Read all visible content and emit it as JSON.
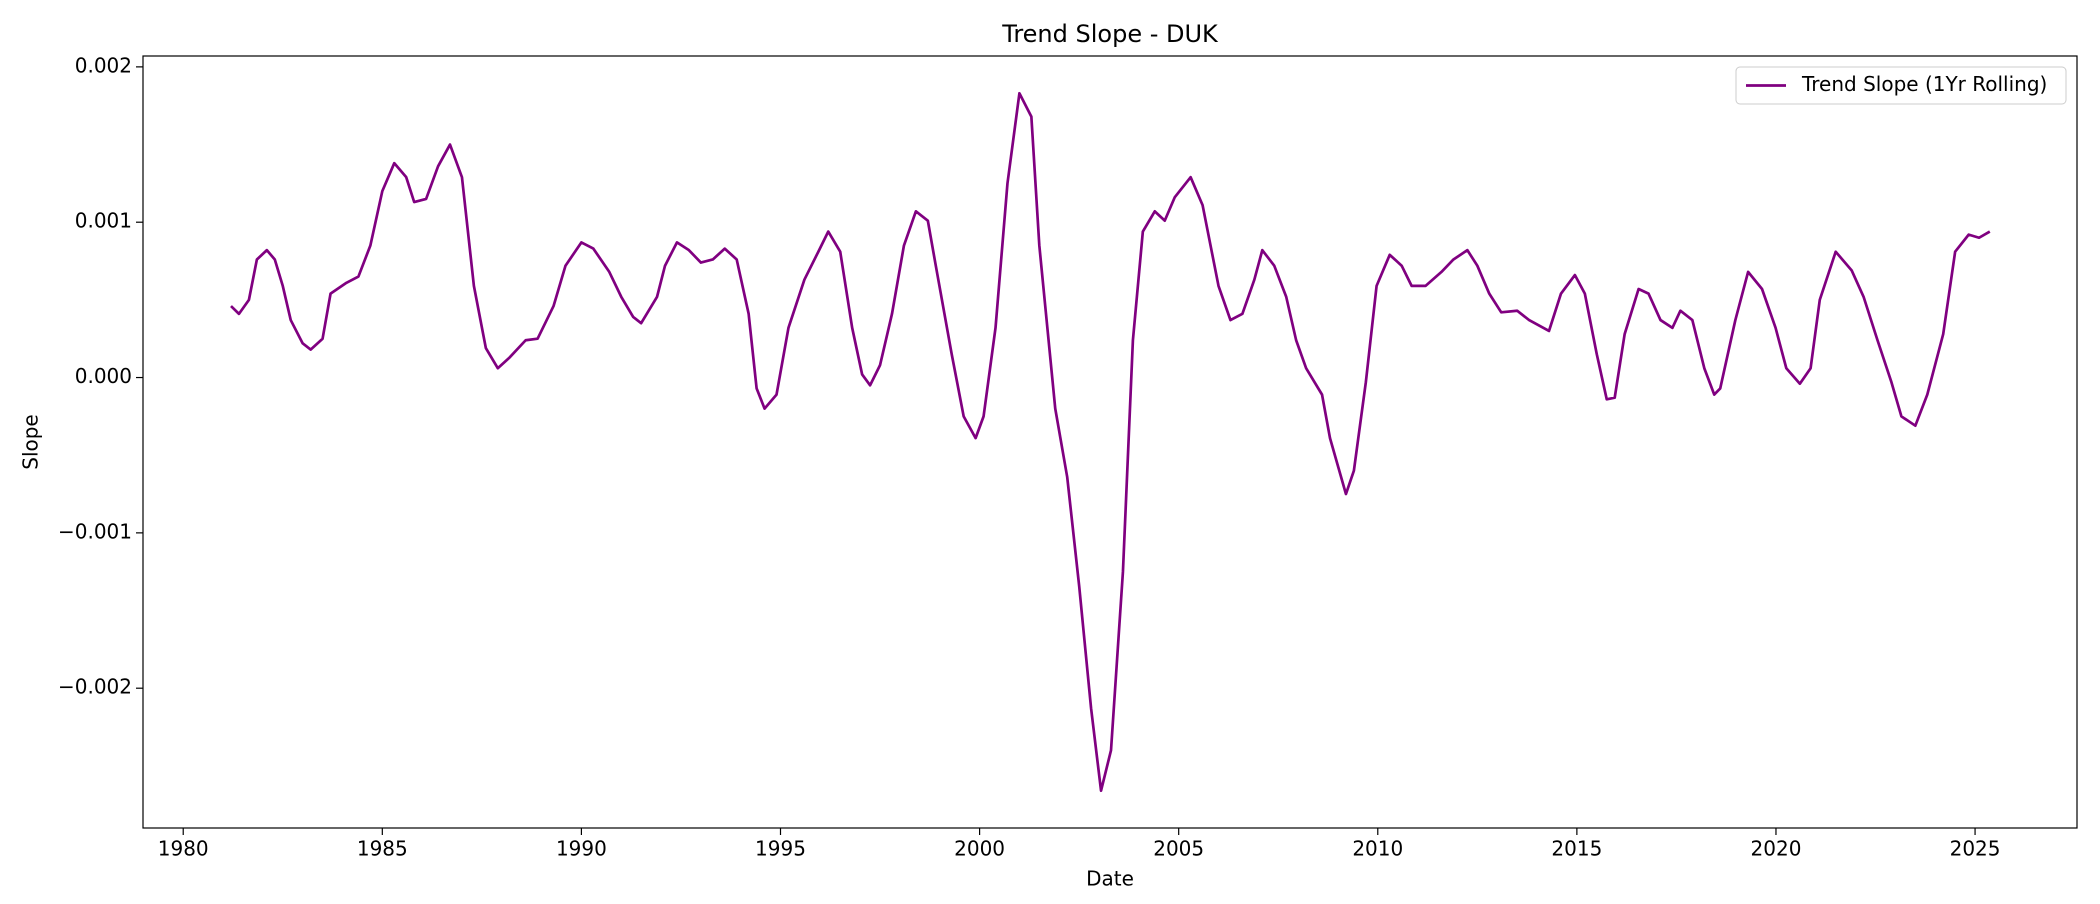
{
  "chart_data": {
    "type": "line",
    "title": "Trend Slope - DUK",
    "xlabel": "Date",
    "ylabel": "Slope",
    "legend": "upper right",
    "grid": false,
    "xlim": [
      1978.99,
      2027.56
    ],
    "xticks": [
      1980,
      1985,
      1990,
      1995,
      2000,
      2005,
      2010,
      2015,
      2020,
      2025
    ],
    "ylim": [
      -0.0029,
      0.00207
    ],
    "yticks": [
      {
        "value": -0.002,
        "label": "−0.002"
      },
      {
        "value": -0.001,
        "label": "−0.001"
      },
      {
        "value": 0,
        "label": "0.000"
      },
      {
        "value": 0.001,
        "label": "0.001"
      },
      0.002
    ],
    "x": [
      1981.2,
      1981.4,
      1981.65,
      1981.85,
      1982.1,
      1982.3,
      1982.5,
      1982.7,
      1983.0,
      1983.2,
      1983.5,
      1983.7,
      1984.1,
      1984.4,
      1984.7,
      1985.0,
      1985.3,
      1985.6,
      1985.8,
      1986.1,
      1986.4,
      1986.7,
      1987.0,
      1987.3,
      1987.6,
      1987.9,
      1988.2,
      1988.6,
      1988.9,
      1989.3,
      1989.6,
      1990.0,
      1990.3,
      1990.7,
      1991.0,
      1991.3,
      1991.5,
      1991.9,
      1992.1,
      1992.4,
      1992.7,
      1993.0,
      1993.3,
      1993.6,
      1993.9,
      1994.2,
      1994.4,
      1994.6,
      1994.9,
      1995.2,
      1995.6,
      1995.95,
      1996.2,
      1996.5,
      1996.8,
      1997.05,
      1997.25,
      1997.5,
      1997.8,
      1998.1,
      1998.4,
      1998.7,
      1998.9,
      1999.3,
      1999.6,
      1999.9,
      2000.1,
      2000.4,
      2000.7,
      2001.0,
      2001.3,
      2001.5,
      2001.9,
      2002.2,
      2002.5,
      2002.8,
      2003.05,
      2003.3,
      2003.6,
      2003.85,
      2004.1,
      2004.4,
      2004.65,
      2004.9,
      2005.3,
      2005.6,
      2006.0,
      2006.3,
      2006.6,
      2006.9,
      2007.1,
      2007.4,
      2007.7,
      2007.95,
      2008.2,
      2008.6,
      2008.8,
      2009.2,
      2009.4,
      2009.7,
      2009.97,
      2010.3,
      2010.6,
      2010.85,
      2011.2,
      2011.6,
      2011.9,
      2012.25,
      2012.5,
      2012.8,
      2013.1,
      2013.5,
      2013.8,
      2014.3,
      2014.6,
      2014.95,
      2015.2,
      2015.5,
      2015.75,
      2015.95,
      2016.2,
      2016.55,
      2016.8,
      2017.1,
      2017.4,
      2017.6,
      2017.9,
      2018.2,
      2018.45,
      2018.6,
      2018.98,
      2019.3,
      2019.65,
      2019.99,
      2020.26,
      2020.6,
      2020.87,
      2021.1,
      2021.5,
      2021.9,
      2022.2,
      2022.55,
      2022.9,
      2023.15,
      2023.5,
      2023.8,
      2024.2,
      2024.5,
      2024.84,
      2025.1,
      2025.37
    ],
    "series": [
      {
        "name": "Trend Slope (1Yr Rolling)",
        "color": "#800080",
        "values": [
          0.00046,
          0.00041,
          0.0005,
          0.00076,
          0.00082,
          0.00076,
          0.00059,
          0.00037,
          0.00022,
          0.00018,
          0.00025,
          0.00054,
          0.00061,
          0.00065,
          0.00085,
          0.0012,
          0.00138,
          0.00129,
          0.00113,
          0.00115,
          0.00136,
          0.0015,
          0.00129,
          0.00059,
          0.00019,
          6e-05,
          0.00013,
          0.00024,
          0.00025,
          0.00046,
          0.00072,
          0.00087,
          0.00083,
          0.00068,
          0.00052,
          0.00039,
          0.00035,
          0.00052,
          0.00072,
          0.00087,
          0.00082,
          0.00074,
          0.00076,
          0.00083,
          0.00076,
          0.00041,
          -7e-05,
          -0.0002,
          -0.00011,
          0.00032,
          0.00063,
          0.00081,
          0.00094,
          0.00081,
          0.00032,
          2e-05,
          -5e-05,
          8e-05,
          0.00041,
          0.00085,
          0.00107,
          0.00101,
          0.00072,
          0.00015,
          -0.00025,
          -0.00039,
          -0.00025,
          0.00032,
          0.00125,
          0.00183,
          0.00168,
          0.00085,
          -0.0002,
          -0.00064,
          -0.00134,
          -0.00213,
          -0.00266,
          -0.0024,
          -0.00125,
          0.00024,
          0.00094,
          0.00107,
          0.00101,
          0.00116,
          0.00129,
          0.00111,
          0.00059,
          0.00037,
          0.00041,
          0.00063,
          0.00082,
          0.00072,
          0.00052,
          0.00024,
          6e-05,
          -0.00011,
          -0.00039,
          -0.00075,
          -0.0006,
          -3e-05,
          0.00059,
          0.00079,
          0.00072,
          0.00059,
          0.00059,
          0.00068,
          0.00076,
          0.00082,
          0.00072,
          0.00054,
          0.00042,
          0.00043,
          0.00037,
          0.0003,
          0.00054,
          0.00066,
          0.00054,
          0.00015,
          -0.00014,
          -0.00013,
          0.00028,
          0.00057,
          0.00054,
          0.00037,
          0.00032,
          0.00043,
          0.00037,
          6e-05,
          -0.00011,
          -7e-05,
          0.00037,
          0.00068,
          0.00057,
          0.00032,
          6e-05,
          -4e-05,
          6e-05,
          0.0005,
          0.00081,
          0.00069,
          0.00052,
          0.00024,
          -3e-05,
          -0.00025,
          -0.00031,
          -0.00011,
          0.00028,
          0.00081,
          0.00092,
          0.0009,
          0.00094
        ]
      }
    ]
  }
}
